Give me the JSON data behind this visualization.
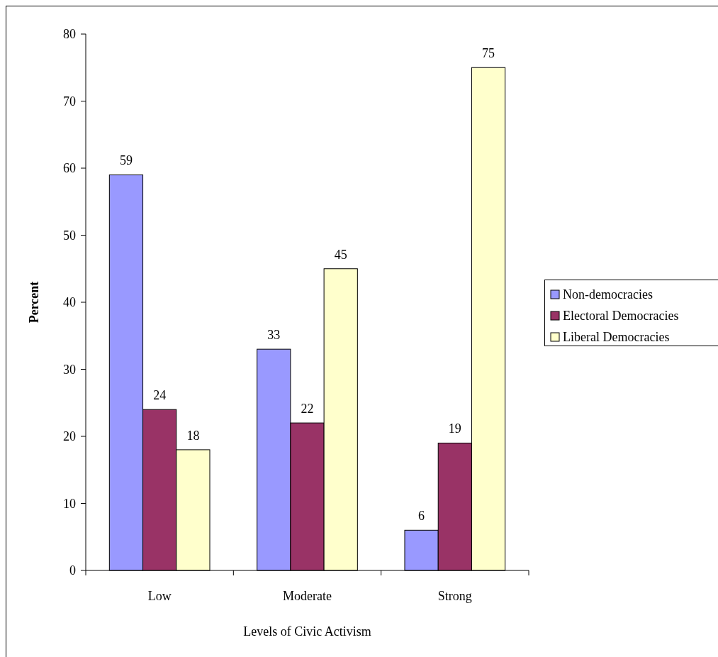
{
  "chart_data": {
    "type": "bar",
    "xlabel": "Levels of Civic Activism",
    "ylabel": "Percent",
    "categories": [
      "Low",
      "Moderate",
      "Strong"
    ],
    "series": [
      {
        "name": "Non-democracies",
        "color": "#9999ff",
        "values": [
          59,
          33,
          6
        ]
      },
      {
        "name": "Electoral Democracies",
        "color": "#993366",
        "values": [
          24,
          22,
          19
        ]
      },
      {
        "name": "Liberal Democracies",
        "color": "#ffffcc",
        "values": [
          18,
          45,
          75
        ]
      }
    ],
    "ylim": [
      0,
      80
    ],
    "yticks": [
      0,
      10,
      20,
      30,
      40,
      50,
      60,
      70,
      80
    ],
    "grid": false,
    "legend": "right",
    "data_labels": true
  }
}
